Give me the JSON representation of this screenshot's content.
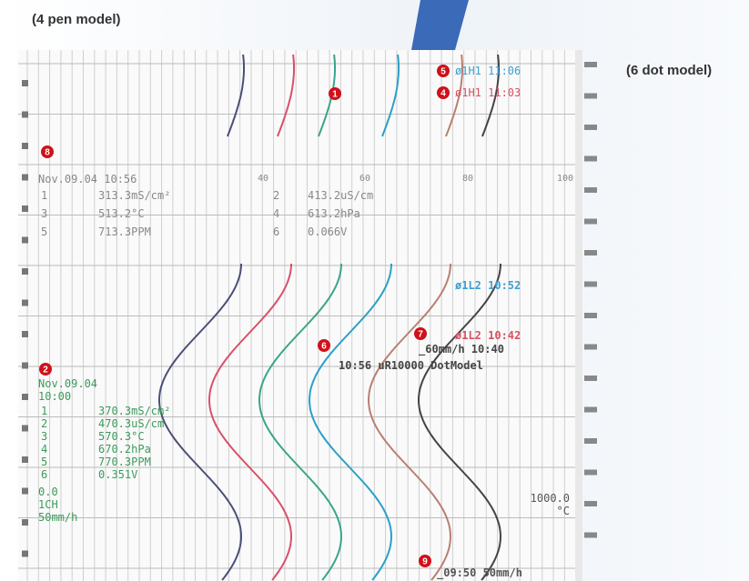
{
  "labels": {
    "pen_model": "(4 pen model)",
    "dot_model": "(6 dot model)"
  },
  "markers": [
    "1",
    "2",
    "4",
    "5",
    "6",
    "7",
    "8",
    "9"
  ],
  "upper_printout": {
    "date": "Nov.09.04 10:56",
    "scale": [
      "40",
      "60",
      "80",
      "100"
    ],
    "readings": [
      [
        "1",
        "313.3mS/cm²"
      ],
      [
        "2",
        "413.2uS/cm"
      ],
      [
        "3",
        "513.2°C"
      ],
      [
        "4",
        "613.2hPa"
      ],
      [
        "5",
        "713.3PPM"
      ],
      [
        "6",
        "0.066V"
      ]
    ],
    "alarms": [
      "ø1H1 11:06",
      "ø1H1 11:03"
    ]
  },
  "lower_printout": {
    "alarms": [
      "ø1L2 10:52",
      "ø1L2 10:42"
    ],
    "speed_change": "_60mm/h 10:40",
    "message": "10:56 uR10000 DotModel",
    "date": "Nov.09.04",
    "time": "10:00",
    "readings": [
      [
        "1",
        "370.3mS/cm²"
      ],
      [
        "2",
        "470.3uS/cm"
      ],
      [
        "3",
        "570.3°C"
      ],
      [
        "4",
        "670.2hPa"
      ],
      [
        "5",
        "770.3PPM"
      ],
      [
        "6",
        "0.351V"
      ]
    ],
    "range_low": "0.0",
    "channel": "1CH",
    "speed": "50mm/h",
    "range_high": "1000.0",
    "unit": "°C",
    "bottom_speed": "_09:50 50mm/h"
  }
}
